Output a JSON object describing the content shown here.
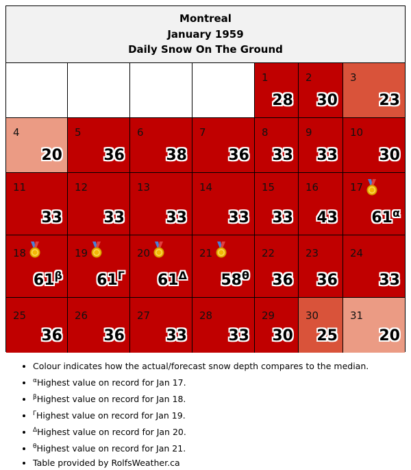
{
  "header": {
    "city": "Montreal",
    "month": "January 1959",
    "subtitle": "Daily Snow On The Ground"
  },
  "colors": {
    "dark_red": "#c00000",
    "medium_red": "#d9533a",
    "light_red": "#eb9b84",
    "empty": "#ffffff",
    "header_bg": "#f2f2f2"
  },
  "days": [
    {
      "day": "1",
      "value": "28",
      "color": "dark_red"
    },
    {
      "day": "2",
      "value": "30",
      "color": "dark_red"
    },
    {
      "day": "3",
      "value": "23",
      "color": "medium_red"
    },
    {
      "day": "4",
      "value": "20",
      "color": "light_red"
    },
    {
      "day": "5",
      "value": "36",
      "color": "dark_red"
    },
    {
      "day": "6",
      "value": "38",
      "color": "dark_red"
    },
    {
      "day": "7",
      "value": "36",
      "color": "dark_red"
    },
    {
      "day": "8",
      "value": "33",
      "color": "dark_red"
    },
    {
      "day": "9",
      "value": "33",
      "color": "dark_red"
    },
    {
      "day": "10",
      "value": "30",
      "color": "dark_red"
    },
    {
      "day": "11",
      "value": "33",
      "color": "dark_red"
    },
    {
      "day": "12",
      "value": "33",
      "color": "dark_red"
    },
    {
      "day": "13",
      "value": "33",
      "color": "dark_red"
    },
    {
      "day": "14",
      "value": "33",
      "color": "dark_red"
    },
    {
      "day": "15",
      "value": "33",
      "color": "dark_red"
    },
    {
      "day": "16",
      "value": "43",
      "color": "dark_red"
    },
    {
      "day": "17",
      "value": "61",
      "color": "dark_red",
      "mark": "α",
      "medal": true
    },
    {
      "day": "18",
      "value": "61",
      "color": "dark_red",
      "mark": "β",
      "medal": true
    },
    {
      "day": "19",
      "value": "61",
      "color": "dark_red",
      "mark": "Γ",
      "medal": true
    },
    {
      "day": "20",
      "value": "61",
      "color": "dark_red",
      "mark": "Δ",
      "medal": true
    },
    {
      "day": "21",
      "value": "58",
      "color": "dark_red",
      "mark": "θ",
      "medal": true
    },
    {
      "day": "22",
      "value": "36",
      "color": "dark_red"
    },
    {
      "day": "23",
      "value": "36",
      "color": "dark_red"
    },
    {
      "day": "24",
      "value": "33",
      "color": "dark_red"
    },
    {
      "day": "25",
      "value": "36",
      "color": "dark_red"
    },
    {
      "day": "26",
      "value": "36",
      "color": "dark_red"
    },
    {
      "day": "27",
      "value": "33",
      "color": "dark_red"
    },
    {
      "day": "28",
      "value": "33",
      "color": "dark_red"
    },
    {
      "day": "29",
      "value": "30",
      "color": "dark_red"
    },
    {
      "day": "30",
      "value": "25",
      "color": "medium_red"
    },
    {
      "day": "31",
      "value": "20",
      "color": "light_red"
    }
  ],
  "notes": [
    {
      "mark": "",
      "text": "Colour indicates how the actual/forecast snow depth compares to the median."
    },
    {
      "mark": "α",
      "text": "Highest value on record for Jan 17."
    },
    {
      "mark": "β",
      "text": "Highest value on record for Jan 18."
    },
    {
      "mark": "Γ",
      "text": "Highest value on record for Jan 19."
    },
    {
      "mark": "Δ",
      "text": "Highest value on record for Jan 20."
    },
    {
      "mark": "θ",
      "text": "Highest value on record for Jan 21."
    },
    {
      "mark": "",
      "text": "Table provided by RolfsWeather.ca"
    }
  ]
}
